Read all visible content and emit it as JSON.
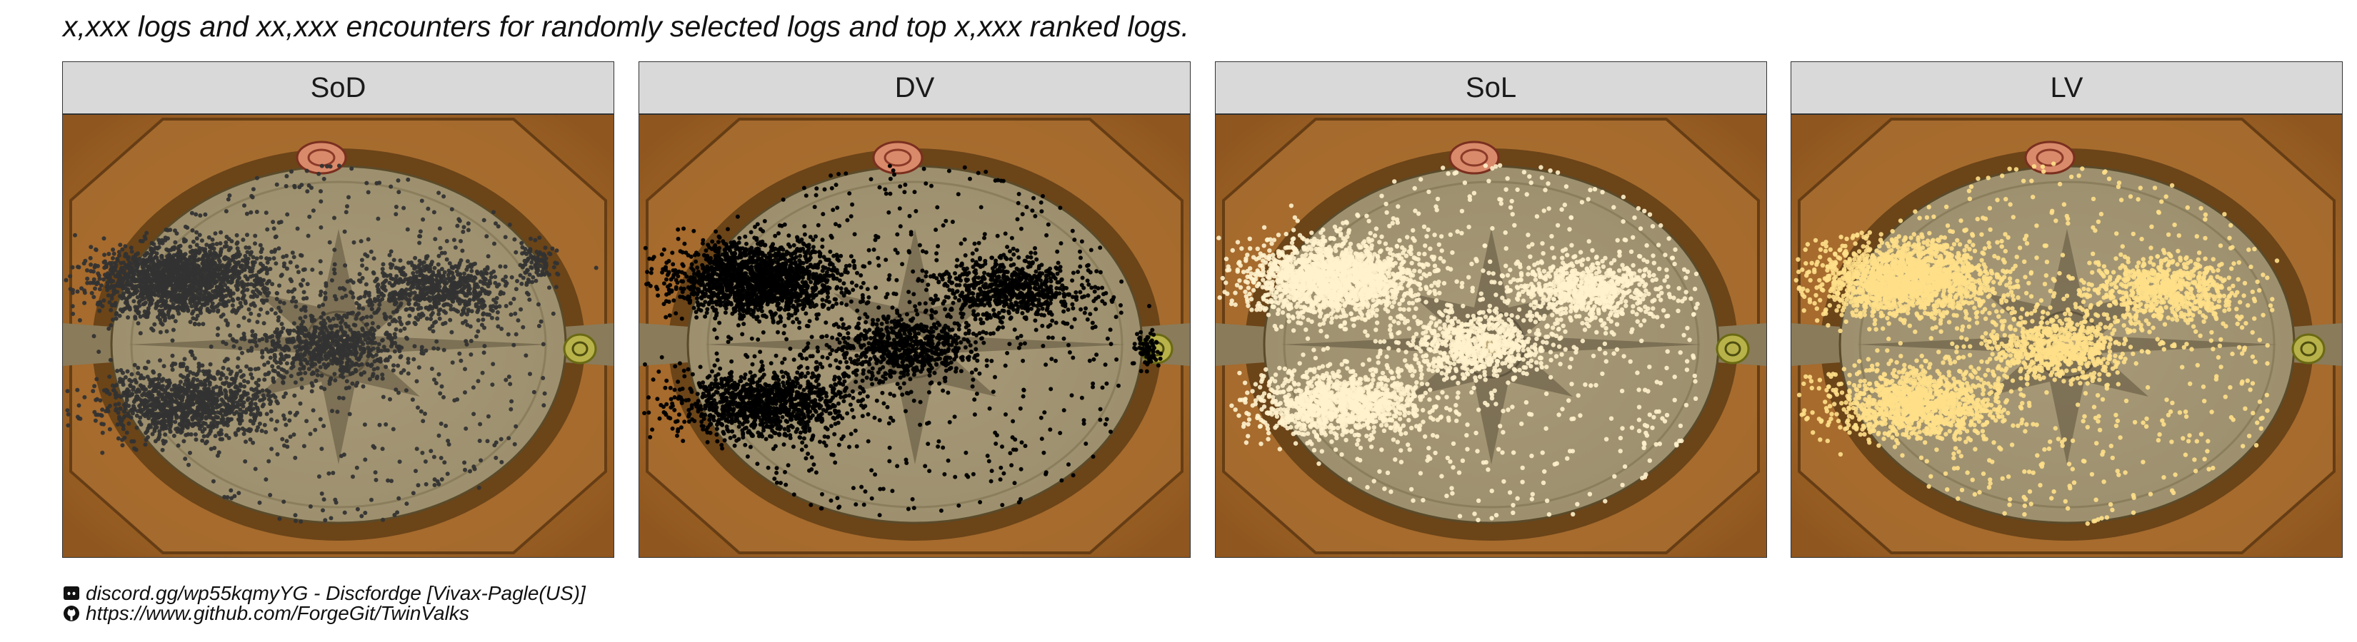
{
  "title": "x,xxx logs and xx,xxx encounters for randomly selected logs and top x,xxx ranked logs.",
  "caption": {
    "discord_line": "discord.gg/wp55kqmyYG - Discfordge [Vivax-Pagle(US)]",
    "github_line": "https://www.github.com/ForgeGit/TwinValks",
    "discord_icon": "discord-icon",
    "github_icon": "github-icon"
  },
  "colors": {
    "strip_bg": "#d9d9d9",
    "floor": "#9b8e6c",
    "ring": "#a86d2f",
    "SoD": "#333333",
    "DV": "#000000",
    "SoL": "#fff2cc",
    "LV": "#ffe08a"
  },
  "chart_data": [
    {
      "type": "scatter",
      "panel": "SoD",
      "background": "arena map",
      "color": "#333333",
      "clusters": [
        {
          "region": "upper-left",
          "density": "very dense"
        },
        {
          "region": "lower-left",
          "density": "dense"
        },
        {
          "region": "center",
          "density": "dense"
        },
        {
          "region": "upper-right",
          "density": "dense"
        },
        {
          "region": "far right",
          "density": "medium"
        },
        {
          "region": "scattered across arena",
          "density": "sparse"
        }
      ]
    },
    {
      "type": "scatter",
      "panel": "DV",
      "background": "arena map",
      "color": "#000000",
      "clusters": [
        {
          "region": "upper-left",
          "density": "very dense"
        },
        {
          "region": "lower-left",
          "density": "dense"
        },
        {
          "region": "center",
          "density": "dense"
        },
        {
          "region": "upper-right",
          "density": "dense"
        },
        {
          "region": "right edge",
          "density": "medium"
        },
        {
          "region": "scattered across arena",
          "density": "sparse"
        }
      ]
    },
    {
      "type": "scatter",
      "panel": "SoL",
      "background": "arena map",
      "color": "#fff2cc",
      "clusters": [
        {
          "region": "upper-left",
          "density": "very dense"
        },
        {
          "region": "lower-left",
          "density": "dense"
        },
        {
          "region": "center",
          "density": "dense"
        },
        {
          "region": "upper-right",
          "density": "dense"
        },
        {
          "region": "scattered across arena",
          "density": "sparse"
        }
      ]
    },
    {
      "type": "scatter",
      "panel": "LV",
      "background": "arena map",
      "color": "#ffe08a",
      "clusters": [
        {
          "region": "upper-left",
          "density": "very dense"
        },
        {
          "region": "lower-left",
          "density": "dense"
        },
        {
          "region": "center",
          "density": "dense"
        },
        {
          "region": "upper-right",
          "density": "dense"
        },
        {
          "region": "scattered across arena",
          "density": "sparse"
        }
      ]
    }
  ]
}
